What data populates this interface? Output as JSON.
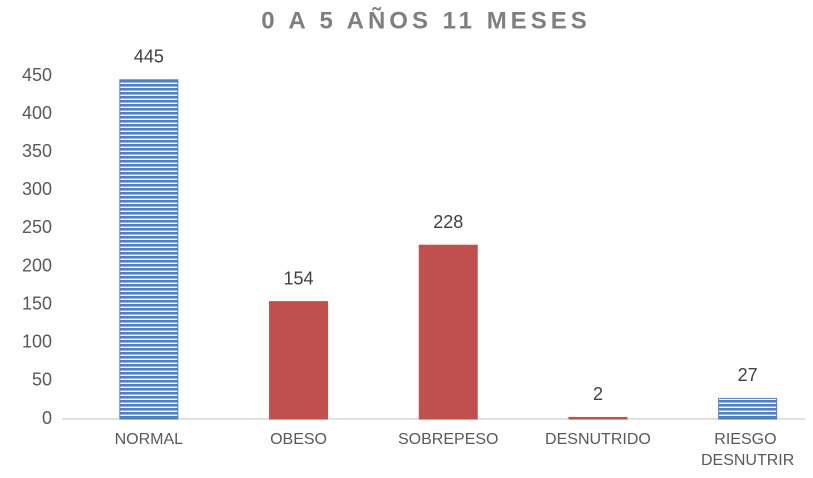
{
  "chart_data": {
    "type": "bar",
    "title": "0 A 5 AÑOS 11 MESES",
    "categories": [
      "NORMAL",
      "OBESO",
      "SOBREPESO",
      "DESNUTRIDO",
      "RIESGO DESNUTRIR"
    ],
    "values": [
      445,
      154,
      228,
      2,
      27
    ],
    "colors": [
      "#4f81bd",
      "#c0504d",
      "#c0504d",
      "#c0504d",
      "#4f81bd"
    ],
    "ylim": [
      0,
      450
    ],
    "yticks": [
      0,
      50,
      100,
      150,
      200,
      250,
      300,
      350,
      400,
      450
    ],
    "grid": false
  }
}
